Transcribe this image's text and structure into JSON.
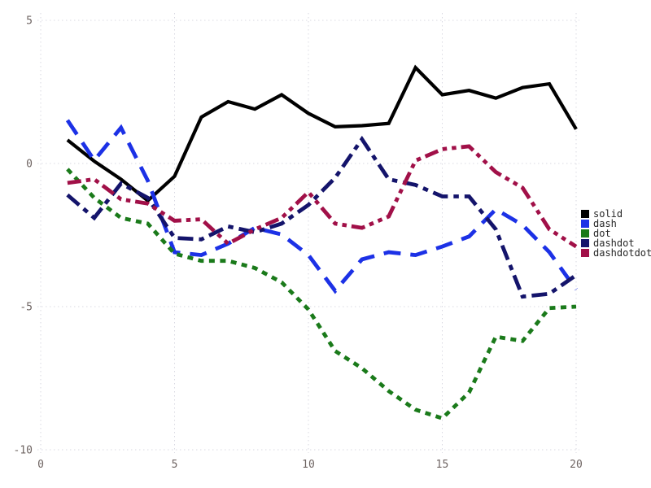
{
  "chart_data": {
    "type": "line",
    "title": "",
    "xlabel": "",
    "ylabel": "",
    "xlim": [
      0,
      20.6
    ],
    "ylim": [
      -10.6,
      5.6
    ],
    "grid": "dotted",
    "legend_position": "right-center-outside",
    "x_ticks": [
      0,
      5,
      10,
      15,
      20
    ],
    "y_ticks": [
      5,
      0,
      -5,
      -10
    ],
    "x": [
      1,
      2,
      3,
      4,
      5,
      6,
      7,
      8,
      9,
      10,
      11,
      12,
      13,
      14,
      15,
      16,
      17,
      18,
      19,
      20
    ],
    "series": [
      {
        "name": "solid",
        "color": "#000000",
        "linestyle": "solid",
        "values": [
          0.82,
          0.08,
          -0.55,
          -1.3,
          -0.45,
          1.62,
          2.16,
          1.9,
          2.4,
          1.75,
          1.28,
          1.32,
          1.4,
          3.35,
          2.4,
          2.55,
          2.28,
          2.65,
          2.78,
          1.2
        ]
      },
      {
        "name": "dash",
        "color": "#1c31e6",
        "linestyle": "dash",
        "values": [
          1.51,
          0.11,
          1.25,
          -0.6,
          -3.1,
          -3.2,
          -2.8,
          -2.25,
          -2.48,
          -3.2,
          -4.45,
          -3.35,
          -3.1,
          -3.2,
          -2.9,
          -2.55,
          -1.6,
          -2.15,
          -3.1,
          -4.4
        ]
      },
      {
        "name": "dot",
        "color": "#1a7a1a",
        "linestyle": "dot",
        "values": [
          -0.2,
          -1.2,
          -1.9,
          -2.1,
          -3.15,
          -3.4,
          -3.4,
          -3.65,
          -4.15,
          -5.1,
          -6.55,
          -7.15,
          -7.95,
          -8.6,
          -8.9,
          -8.0,
          -6.05,
          -6.2,
          -5.05,
          -5.0
        ]
      },
      {
        "name": "dashdot",
        "color": "#14146b",
        "linestyle": "dashdot",
        "values": [
          -1.1,
          -1.9,
          -0.7,
          -1.2,
          -2.6,
          -2.65,
          -2.2,
          -2.4,
          -2.1,
          -1.45,
          -0.5,
          0.85,
          -0.55,
          -0.75,
          -1.15,
          -1.15,
          -2.3,
          -4.65,
          -4.55,
          -3.9
        ]
      },
      {
        "name": "dashdotdot",
        "color": "#a11048",
        "linestyle": "dashdotdot",
        "values": [
          -0.68,
          -0.55,
          -1.25,
          -1.4,
          -2.0,
          -1.95,
          -2.8,
          -2.3,
          -1.9,
          -1.0,
          -2.1,
          -2.25,
          -1.85,
          0.1,
          0.5,
          0.6,
          -0.3,
          -0.85,
          -2.3,
          -2.9
        ]
      }
    ]
  }
}
